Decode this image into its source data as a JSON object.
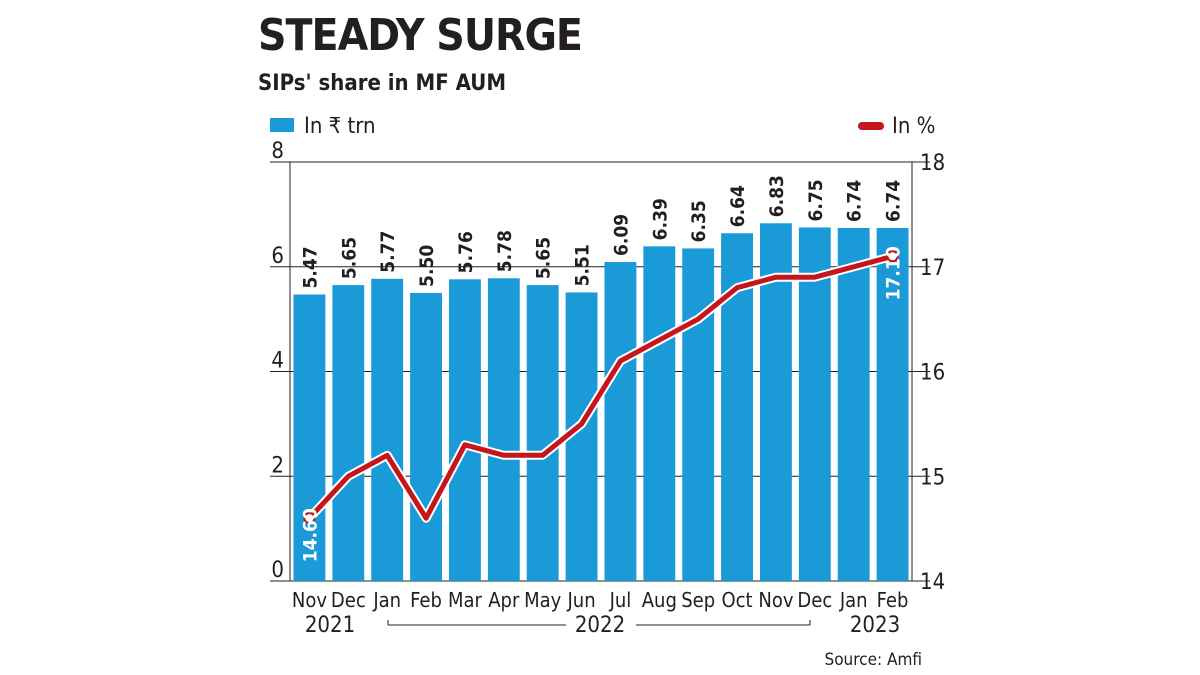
{
  "title": "STEADY SURGE",
  "subtitle": "SIPs' share in MF AUM",
  "legend": {
    "bars": "In ₹ trn",
    "line": "In %"
  },
  "source": "Source: Amfi",
  "colors": {
    "bar": "#1a9ad6",
    "line": "#c4161c",
    "text": "#231f20"
  },
  "years": [
    "2021",
    "2022",
    "2023"
  ],
  "chart_data": {
    "type": "bar+line",
    "categories": [
      "Nov",
      "Dec",
      "Jan",
      "Feb",
      "Mar",
      "Apr",
      "May",
      "Jun",
      "Jul",
      "Aug",
      "Sep",
      "Oct",
      "Nov",
      "Dec",
      "Jan",
      "Feb"
    ],
    "series": [
      {
        "name": "In ₹ trn",
        "type": "bar",
        "axis": "left",
        "values": [
          5.47,
          5.65,
          5.77,
          5.5,
          5.76,
          5.78,
          5.65,
          5.51,
          6.09,
          6.39,
          6.35,
          6.64,
          6.83,
          6.75,
          6.74,
          6.74
        ]
      },
      {
        "name": "In %",
        "type": "line",
        "axis": "right",
        "values": [
          14.6,
          15.0,
          15.2,
          14.6,
          15.3,
          15.2,
          15.2,
          15.5,
          16.1,
          16.3,
          16.5,
          16.8,
          16.9,
          16.9,
          17.0,
          17.1
        ],
        "labeled": {
          "0": "14.60",
          "15": "17.10"
        }
      }
    ],
    "ylim_left": [
      0,
      8
    ],
    "yticks_left": [
      0,
      2,
      4,
      6,
      8
    ],
    "ylim_right": [
      14,
      18
    ],
    "yticks_right": [
      14,
      15,
      16,
      17,
      18
    ],
    "legend_position": "top"
  }
}
